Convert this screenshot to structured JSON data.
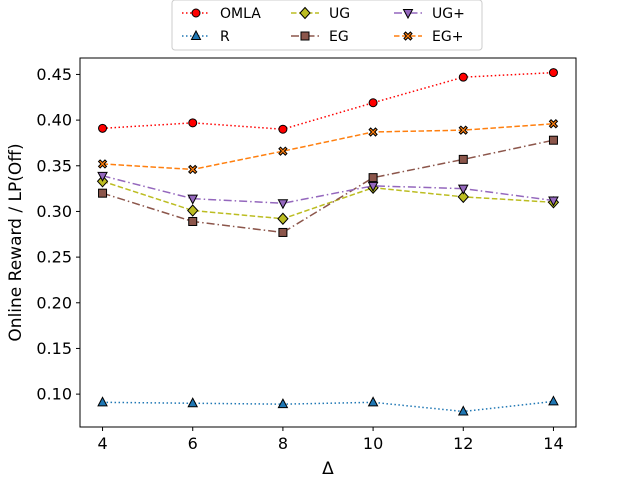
{
  "chart_data": {
    "type": "line",
    "title": "",
    "xlabel": "Δ",
    "ylabel": "Online Reward / LP(Off)",
    "x": [
      4,
      6,
      8,
      10,
      12,
      14
    ],
    "xlim": [
      3.5,
      14.5
    ],
    "ylim": [
      0.064,
      0.468
    ],
    "xticks": [
      "4",
      "6",
      "8",
      "10",
      "12",
      "14"
    ],
    "yticks": [
      "0.10",
      "0.15",
      "0.20",
      "0.25",
      "0.30",
      "0.35",
      "0.40",
      "0.45"
    ],
    "grid": false,
    "legend_position": "top-center, above plot, 3 columns",
    "series": [
      {
        "name": "OMLA",
        "values": [
          0.391,
          0.397,
          0.39,
          0.419,
          0.447,
          0.452
        ],
        "color": "#ff0000",
        "linestyle": "dotted",
        "marker": "circle"
      },
      {
        "name": "R",
        "values": [
          0.091,
          0.09,
          0.089,
          0.091,
          0.081,
          0.092
        ],
        "color": "#1f77b4",
        "linestyle": "dotted",
        "marker": "triangle-up"
      },
      {
        "name": "UG",
        "values": [
          0.333,
          0.301,
          0.292,
          0.326,
          0.316,
          0.31
        ],
        "color": "#bcbd22",
        "linestyle": "dashed",
        "marker": "diamond"
      },
      {
        "name": "EG",
        "values": [
          0.32,
          0.289,
          0.277,
          0.337,
          0.357,
          0.378
        ],
        "color": "#8c564b",
        "linestyle": "dashdot",
        "marker": "square"
      },
      {
        "name": "UG+",
        "values": [
          0.339,
          0.314,
          0.309,
          0.328,
          0.325,
          0.312
        ],
        "color": "#9467bd",
        "linestyle": "dashdot",
        "marker": "triangle-down"
      },
      {
        "name": "EG+",
        "values": [
          0.352,
          0.346,
          0.366,
          0.387,
          0.389,
          0.396
        ],
        "color": "#ff7f0e",
        "linestyle": "dashed",
        "marker": "x-filled"
      }
    ]
  }
}
